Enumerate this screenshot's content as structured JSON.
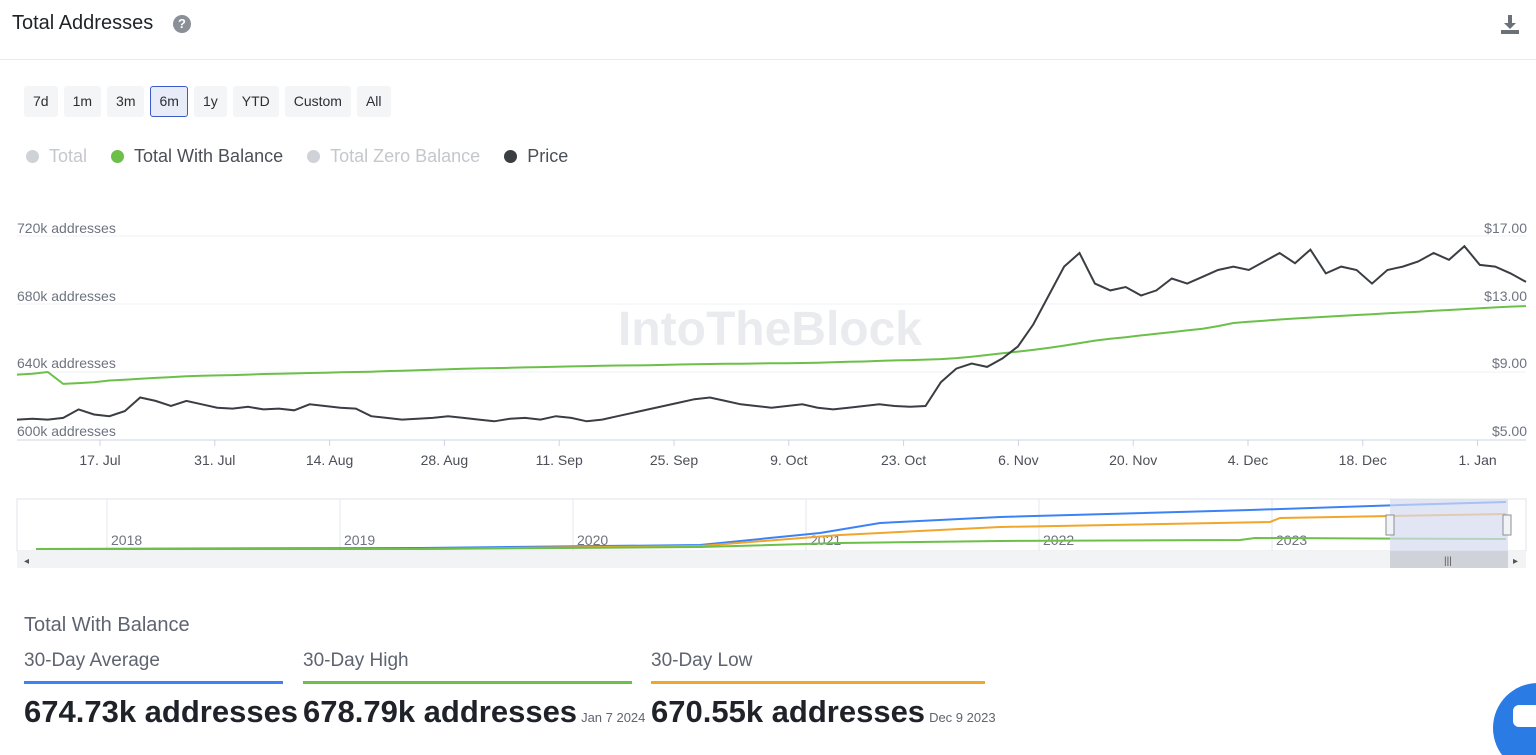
{
  "header": {
    "title": "Total Addresses",
    "help_icon": "question-circle-icon",
    "download_icon": "download-icon"
  },
  "range_buttons": [
    "7d",
    "1m",
    "3m",
    "6m",
    "1y",
    "YTD",
    "Custom",
    "All"
  ],
  "range_selected": "6m",
  "legend": [
    {
      "label": "Total",
      "color": "#cfd2d6",
      "active": false
    },
    {
      "label": "Total With Balance",
      "color": "#6cc04a",
      "active": true
    },
    {
      "label": "Total Zero Balance",
      "color": "#cfd2d6",
      "active": false
    },
    {
      "label": "Price",
      "color": "#3a3d42",
      "active": true
    }
  ],
  "watermark": "IntoTheBlock",
  "chart_data": {
    "type": "line",
    "x_ticks": [
      "17. Jul",
      "31. Jul",
      "14. Aug",
      "28. Aug",
      "11. Sep",
      "25. Sep",
      "9. Oct",
      "23. Oct",
      "6. Nov",
      "20. Nov",
      "4. Dec",
      "18. Dec",
      "1. Jan"
    ],
    "y_left_ticks": [
      "720k addresses",
      "680k addresses",
      "640k addresses",
      "600k addresses"
    ],
    "y_right_ticks": [
      "$17.00",
      "$13.00",
      "$9.00",
      "$5.00"
    ],
    "y_left_range": [
      600000,
      720000
    ],
    "y_right_range": [
      5,
      17
    ],
    "series": [
      {
        "name": "Total With Balance",
        "color": "#6cc04a",
        "axis": "left",
        "values": [
          638500,
          639000,
          640000,
          633000,
          633500,
          634000,
          635000,
          635500,
          636000,
          636500,
          637000,
          637500,
          637800,
          638000,
          638200,
          638500,
          638800,
          639000,
          639200,
          639400,
          639600,
          639800,
          640000,
          640200,
          640500,
          640700,
          641000,
          641300,
          641600,
          641900,
          642100,
          642300,
          642500,
          642700,
          642900,
          643100,
          643300,
          643500,
          643700,
          643800,
          643900,
          644000,
          644200,
          644400,
          644600,
          644700,
          644800,
          644900,
          645000,
          645100,
          645200,
          645300,
          645500,
          645700,
          646000,
          646200,
          646500,
          646800,
          647000,
          647300,
          647600,
          648200,
          649000,
          650000,
          651000,
          652000,
          653000,
          654200,
          655500,
          657000,
          658500,
          659500,
          660500,
          661500,
          662500,
          663500,
          664500,
          665500,
          667000,
          668800,
          669500,
          670200,
          670900,
          671500,
          672000,
          672500,
          673000,
          673500,
          674000,
          674500,
          675000,
          675500,
          676000,
          676500,
          677000,
          677500,
          678000,
          678500,
          678790
        ]
      },
      {
        "name": "Price",
        "color": "#3a3d42",
        "axis": "right",
        "values": [
          6.2,
          6.25,
          6.2,
          6.3,
          6.8,
          6.5,
          6.4,
          6.7,
          7.5,
          7.3,
          7.0,
          7.3,
          7.1,
          6.9,
          6.85,
          6.95,
          6.8,
          6.85,
          6.75,
          7.1,
          7.0,
          6.9,
          6.85,
          6.4,
          6.3,
          6.2,
          6.25,
          6.3,
          6.4,
          6.3,
          6.2,
          6.1,
          6.25,
          6.3,
          6.2,
          6.4,
          6.3,
          6.1,
          6.2,
          6.4,
          6.6,
          6.8,
          7.0,
          7.2,
          7.4,
          7.5,
          7.3,
          7.1,
          7.0,
          6.9,
          7.0,
          7.1,
          6.9,
          6.8,
          6.9,
          7.0,
          7.1,
          7.0,
          6.95,
          7.0,
          8.4,
          9.2,
          9.5,
          9.3,
          9.8,
          10.5,
          11.8,
          13.5,
          15.2,
          16.0,
          14.2,
          13.8,
          14.0,
          13.5,
          13.8,
          14.5,
          14.2,
          14.6,
          15.0,
          15.2,
          15.0,
          15.5,
          16.0,
          15.4,
          16.2,
          14.8,
          15.2,
          15.0,
          14.2,
          15.0,
          15.2,
          15.5,
          16.0,
          15.6,
          16.4,
          15.3,
          15.2,
          14.8,
          14.3
        ]
      }
    ],
    "navigator": {
      "x_ticks": [
        "2018",
        "2019",
        "2020",
        "2021",
        "2022",
        "2023"
      ]
    }
  },
  "stats": {
    "section_title": "Total With Balance",
    "items": [
      {
        "label": "30-Day Average",
        "value": "674.73k addresses",
        "date": "",
        "color": "#3b82f6"
      },
      {
        "label": "30-Day High",
        "value": "678.79k addresses",
        "date": "Jan 7 2024",
        "color": "#6cc04a"
      },
      {
        "label": "30-Day Low",
        "value": "670.55k addresses",
        "date": "Dec 9 2023",
        "color": "#f0a52b"
      }
    ]
  },
  "chat_widget_icon": "chat-icon"
}
